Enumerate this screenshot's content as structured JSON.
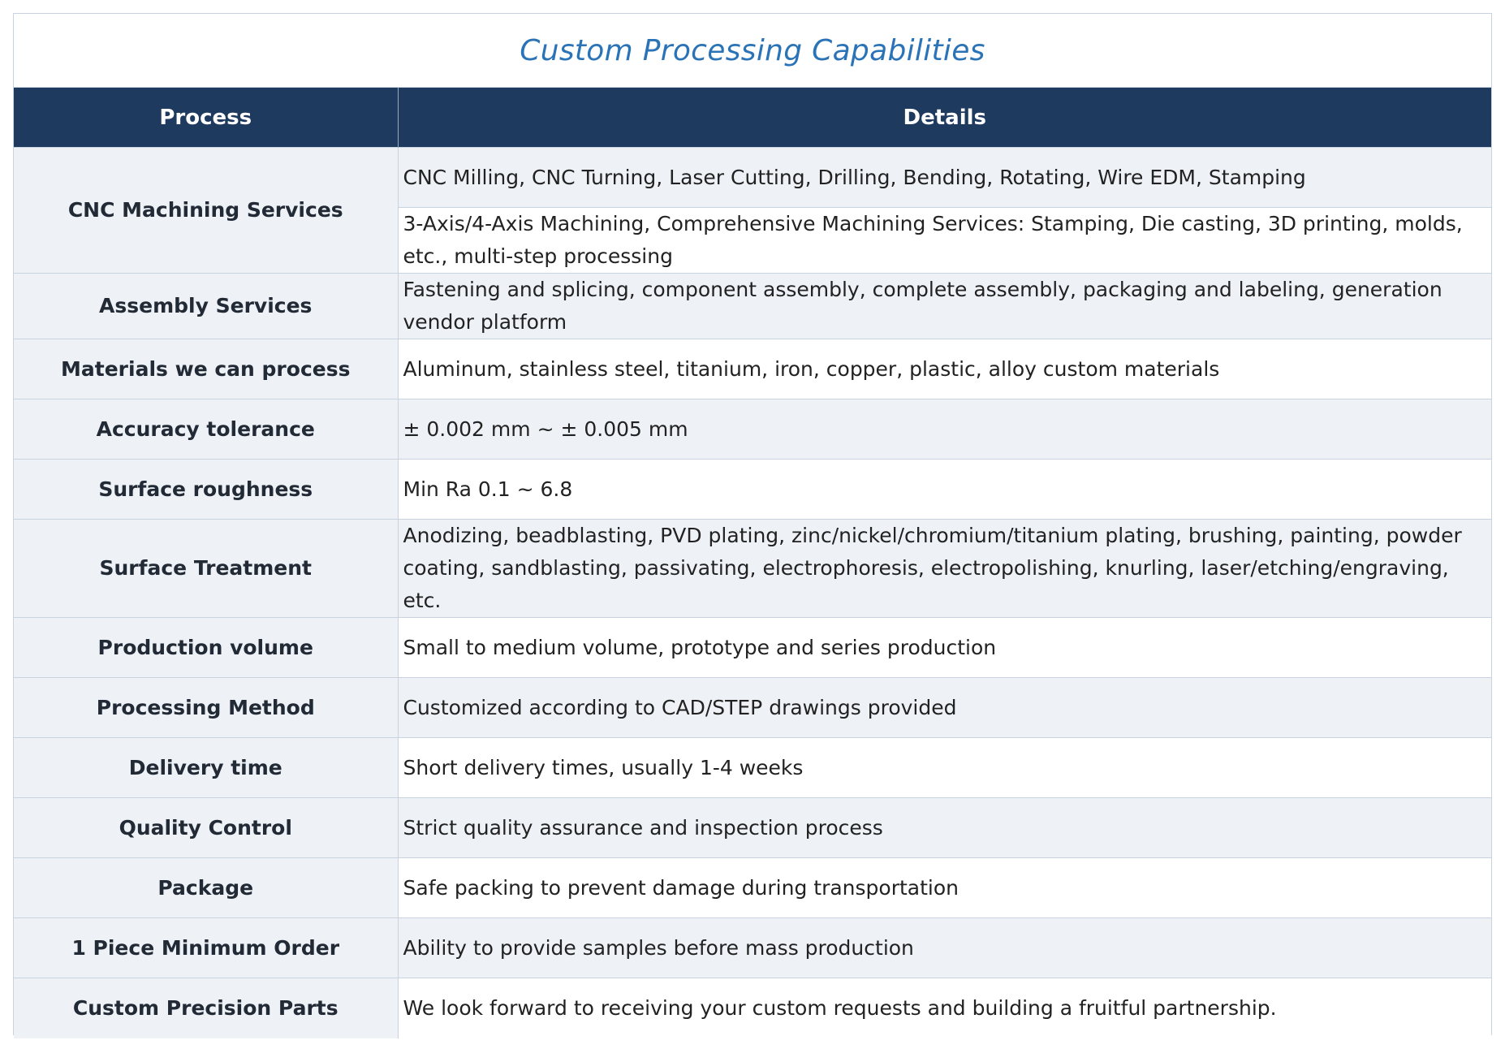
{
  "title": "Custom Processing Capabilities",
  "headers": {
    "process": "Process",
    "details": "Details"
  },
  "rows": [
    {
      "process": "CNC Machining Services",
      "details": "CNC Milling, CNC Turning, Laser Cutting, Drilling, Bending, Rotating, Wire EDM, Stamping"
    },
    {
      "details": "3-Axis/4-Axis Machining, Comprehensive Machining Services: Stamping, Die casting, 3D printing, molds, etc., multi-step processing"
    },
    {
      "process": "Assembly Services",
      "details": "Fastening and splicing, component assembly, complete assembly, packaging and labeling, generation vendor platform"
    },
    {
      "process": "Materials we can process",
      "details": "Aluminum, stainless steel, titanium, iron, copper, plastic, alloy custom materials"
    },
    {
      "process": "Accuracy tolerance",
      "details": "± 0.002 mm ~ ± 0.005 mm"
    },
    {
      "process": "Surface roughness",
      "details": "Min Ra 0.1 ~ 6.8"
    },
    {
      "process": "Surface Treatment",
      "details": "Anodizing, beadblasting, PVD plating, zinc/nickel/chromium/titanium plating, brushing, painting, powder coating, sandblasting, passivating, electrophoresis, electropolishing, knurling, laser/etching/engraving, etc."
    },
    {
      "process": "Production volume",
      "details": "Small to medium volume, prototype and series production"
    },
    {
      "process": "Processing Method",
      "details": "Customized according to CAD/STEP drawings provided"
    },
    {
      "process": "Delivery time",
      "details": "Short delivery times, usually 1-4 weeks"
    },
    {
      "process": "Quality Control",
      "details": "Strict quality assurance and inspection process"
    },
    {
      "process": "Package",
      "details": "Safe packing to prevent damage during transportation"
    },
    {
      "process": "1 Piece Minimum Order",
      "details": "Ability to provide samples before mass production"
    },
    {
      "process": "Custom Precision Parts",
      "details": "We look forward to receiving your custom requests and building a fruitful partnership."
    }
  ]
}
